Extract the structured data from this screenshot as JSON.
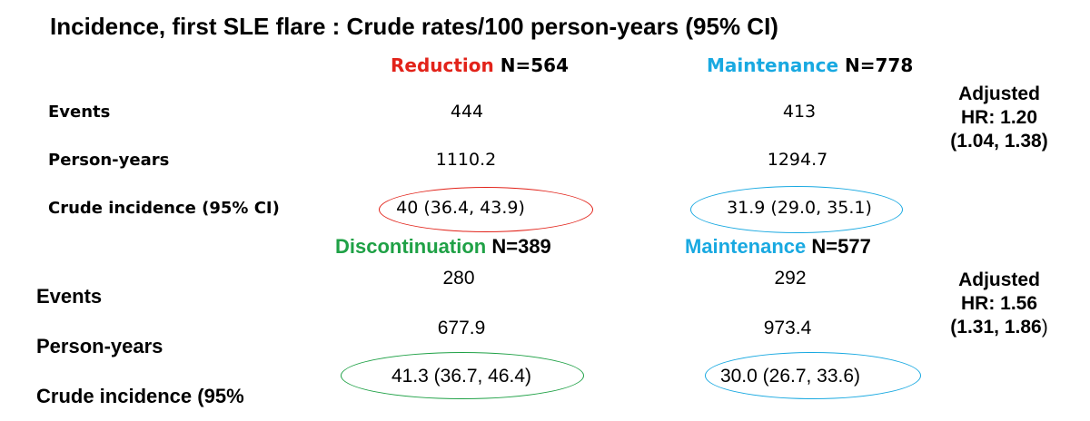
{
  "title": "Incidence, first SLE flare : Crude rates/100 person-years (95% CI)",
  "colors": {
    "reduction": "#e2231a",
    "maintenance": "#19a9e1",
    "discontinuation": "#1fa146",
    "text": "#000000"
  },
  "top_table": {
    "groups": [
      {
        "name": "Reduction",
        "n_label": "N=564"
      },
      {
        "name": "Maintenance",
        "n_label": "N=778"
      }
    ],
    "rows": [
      {
        "label": "Events",
        "values": [
          "444",
          "413"
        ]
      },
      {
        "label": "Person-years",
        "values": [
          "1110.2",
          "1294.7"
        ]
      },
      {
        "label": "Crude incidence (95% CI)",
        "values": [
          "40 (36.4, 43.9)",
          "31.9  (29.0, 35.1)"
        ]
      }
    ],
    "adjusted_hr": [
      "Adjusted",
      "HR: 1.20",
      "(1.04, 1.38)"
    ]
  },
  "bottom_table": {
    "groups": [
      {
        "name": "Discontinuation",
        "n_label": "N=389"
      },
      {
        "name": "Maintenance",
        "n_label": "N=577"
      }
    ],
    "rows": [
      {
        "label": "Events",
        "values": [
          "280",
          "292"
        ]
      },
      {
        "label": "Person-years",
        "values": [
          "677.9",
          "973.4"
        ]
      },
      {
        "label": "Crude incidence (95%",
        "values": [
          "41.3 (36.7, 46.4)",
          "30.0 (26.7, 33.6)"
        ]
      }
    ],
    "adjusted_hr": [
      "Adjusted",
      "HR: 1.56",
      "(1.31, 1.86",
      ")"
    ]
  }
}
